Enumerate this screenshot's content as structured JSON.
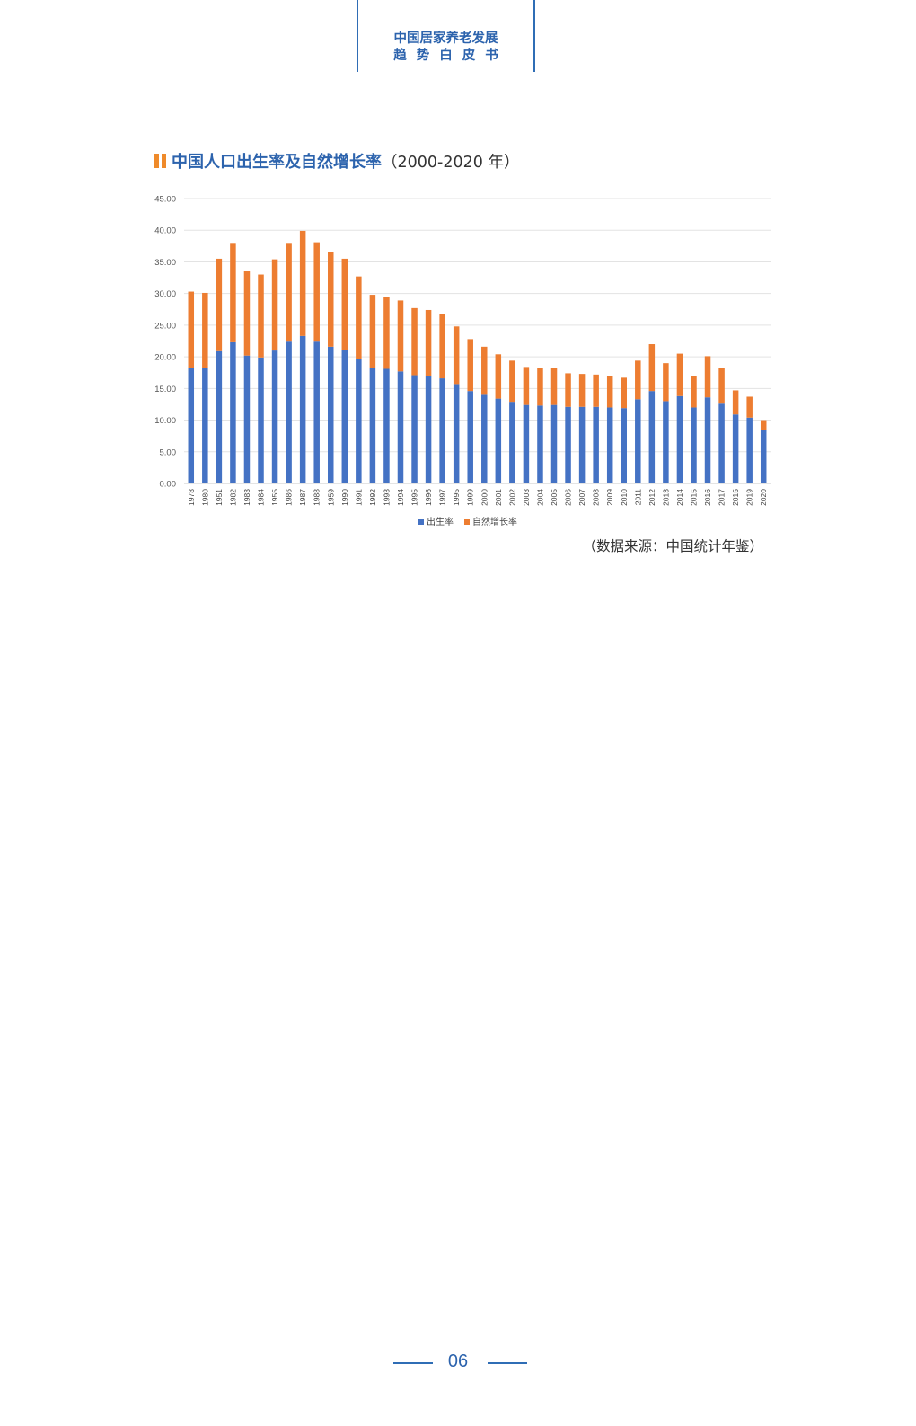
{
  "header": {
    "line1": "中国居家养老发展",
    "line2": "趋势白皮书"
  },
  "section": {
    "title_main": "中国人口出生率及自然增长率",
    "title_paren": "（2000-2020 年）"
  },
  "source": "（数据来源：中国统计年鉴）",
  "page_number": "06",
  "colors": {
    "birth": "#4472c4",
    "growth": "#ed7d31",
    "brand": "#2c63ad",
    "accent": "#ef8a2a"
  },
  "chart_data": {
    "type": "bar",
    "stacked": true,
    "categories": [
      "1978",
      "1980",
      "1951",
      "1982",
      "1983",
      "1984",
      "1955",
      "1986",
      "1987",
      "1988",
      "1959",
      "1990",
      "1991",
      "1992",
      "1993",
      "1994",
      "1995",
      "1996",
      "1997",
      "1995",
      "1999",
      "2000",
      "2001",
      "2002",
      "2003",
      "2004",
      "2005",
      "2006",
      "2007",
      "2008",
      "2009",
      "2010",
      "2011",
      "2012",
      "2013",
      "2014",
      "2015",
      "2016",
      "2017",
      "2015",
      "2019",
      "2020"
    ],
    "series": [
      {
        "name": "出生率",
        "values": [
          18.3,
          18.2,
          20.9,
          22.3,
          20.2,
          19.9,
          21.0,
          22.4,
          23.3,
          22.4,
          21.6,
          21.1,
          19.7,
          18.2,
          18.1,
          17.7,
          17.1,
          17.0,
          16.6,
          15.7,
          14.6,
          14.0,
          13.4,
          12.9,
          12.4,
          12.3,
          12.4,
          12.1,
          12.1,
          12.1,
          12.0,
          11.9,
          13.3,
          14.6,
          13.0,
          13.8,
          12.0,
          13.6,
          12.6,
          10.9,
          10.4,
          8.5
        ]
      },
      {
        "name": "自然增长率",
        "values": [
          12.0,
          11.9,
          14.6,
          15.7,
          13.3,
          13.1,
          14.4,
          15.6,
          16.6,
          15.7,
          15.0,
          14.4,
          13.0,
          11.6,
          11.4,
          11.2,
          10.6,
          10.4,
          10.1,
          9.1,
          8.2,
          7.6,
          7.0,
          6.5,
          6.0,
          5.9,
          5.9,
          5.3,
          5.2,
          5.1,
          4.9,
          4.8,
          6.1,
          7.4,
          6.0,
          6.7,
          4.9,
          6.5,
          5.6,
          3.8,
          3.3,
          1.5
        ]
      }
    ],
    "yticks": [
      "45.00",
      "40.00",
      "35.00",
      "30.00",
      "25.00",
      "20.00",
      "15.00",
      "10.00",
      "5.00",
      "0.00"
    ],
    "ylim": [
      0,
      45
    ],
    "grid": true,
    "legend_position": "bottom"
  }
}
